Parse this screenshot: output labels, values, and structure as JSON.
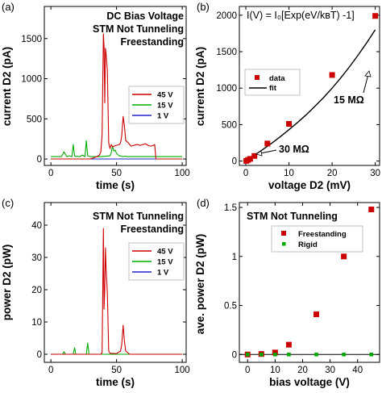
{
  "chart_data": [
    {
      "panel": "(a)",
      "type": "line",
      "xlabel": "time (s)",
      "ylabel": "current D2 (pA)",
      "xlim": [
        -5,
        103
      ],
      "ylim": [
        -80,
        1900
      ],
      "xticks": [
        0,
        50,
        100
      ],
      "yticks": [
        0,
        500,
        1000,
        1500
      ],
      "annotations": [
        "DC Bias Voltage",
        "STM Not Tunneling",
        "Freestanding"
      ],
      "legend_position": "center-right",
      "series": [
        {
          "name": "45 V",
          "color": "#cc0000",
          "x": [
            0,
            20,
            30,
            35,
            37,
            38,
            39,
            40,
            40.5,
            41,
            41.5,
            42,
            43,
            44,
            45,
            46,
            47,
            48,
            50,
            52,
            53,
            54,
            55,
            56,
            57,
            59,
            61,
            63,
            66,
            68,
            70,
            72,
            74,
            76,
            78,
            79,
            80,
            90,
            100
          ],
          "y": [
            0,
            0,
            0,
            30,
            50,
            90,
            300,
            1560,
            1400,
            700,
            1380,
            1320,
            1100,
            200,
            130,
            180,
            150,
            160,
            170,
            180,
            200,
            290,
            530,
            410,
            230,
            200,
            160,
            170,
            180,
            170,
            180,
            190,
            170,
            160,
            170,
            180,
            0,
            0,
            0
          ]
        },
        {
          "name": "15 V",
          "color": "#00aa00",
          "x": [
            0,
            8,
            9,
            10,
            11,
            12,
            14,
            16,
            17,
            18,
            19,
            20,
            22,
            24,
            26,
            27,
            28,
            30,
            33,
            38,
            45,
            46,
            47,
            48,
            49,
            50,
            52,
            54,
            55,
            56,
            58,
            60,
            100
          ],
          "y": [
            30,
            30,
            60,
            90,
            60,
            30,
            40,
            30,
            180,
            40,
            30,
            35,
            30,
            50,
            30,
            230,
            40,
            30,
            30,
            30,
            40,
            80,
            160,
            100,
            110,
            70,
            40,
            35,
            30,
            35,
            30,
            30,
            30
          ]
        },
        {
          "name": "1 V",
          "color": "#2222cc",
          "x": [
            0,
            100
          ],
          "y": [
            0,
            0
          ]
        }
      ]
    },
    {
      "panel": "(b)",
      "type": "scatter",
      "xlabel": "voltage D2 (mV)",
      "ylabel": "current D2 (pA)",
      "xlim": [
        -1.5,
        31
      ],
      "ylim": [
        -60,
        2120
      ],
      "xticks": [
        0,
        10,
        20,
        30
      ],
      "yticks": [
        0,
        500,
        1000,
        1500,
        2000
      ],
      "equation": "I(V) = I₀[Exp(eV/k_BT) -1]",
      "annotations": [
        "15 MΩ",
        "30 MΩ"
      ],
      "legend_position": "upper-left",
      "series": [
        {
          "name": "data",
          "color": "#cc0000",
          "x": [
            0.1,
            0.5,
            1,
            2,
            5,
            10,
            20,
            30
          ],
          "y": [
            2,
            15,
            30,
            70,
            240,
            510,
            1180,
            1990
          ]
        },
        {
          "name": "fit",
          "color": "#000000",
          "x": [
            0,
            2,
            4,
            6,
            8,
            10,
            12,
            14,
            16,
            18,
            20,
            22,
            24,
            26,
            28,
            30
          ],
          "y": [
            0,
            80,
            160,
            245,
            335,
            430,
            530,
            635,
            750,
            870,
            1000,
            1140,
            1290,
            1450,
            1620,
            1800
          ]
        }
      ]
    },
    {
      "panel": "(c)",
      "type": "line",
      "xlabel": "time (s)",
      "ylabel": "power D2 (pW)",
      "xlim": [
        -5,
        103
      ],
      "ylim": [
        -2.5,
        47
      ],
      "xticks": [
        0,
        50,
        100
      ],
      "yticks": [
        0,
        10,
        20,
        30,
        40
      ],
      "annotations": [
        "STM Not Tunneling",
        "Freestanding"
      ],
      "legend_position": "center-right",
      "series": [
        {
          "name": "45 V",
          "color": "#cc0000",
          "x": [
            0,
            35,
            38,
            39,
            40,
            40.5,
            41,
            41.5,
            42,
            43,
            44,
            45,
            50,
            53,
            54,
            55,
            56,
            57,
            60,
            100
          ],
          "y": [
            0,
            0,
            0,
            0.5,
            39,
            14,
            20,
            33,
            27,
            19,
            1,
            0.3,
            0.2,
            1,
            3,
            9,
            4,
            1,
            0,
            0
          ]
        },
        {
          "name": "15 V",
          "color": "#00aa00",
          "x": [
            0,
            9,
            10,
            11,
            17,
            18,
            19,
            27,
            28,
            29,
            100
          ],
          "y": [
            0,
            0,
            0.8,
            0,
            0,
            2,
            0,
            0,
            3.5,
            0,
            0
          ]
        },
        {
          "name": "1 V",
          "color": "#2222cc",
          "x": [
            0,
            100
          ],
          "y": [
            0,
            0
          ]
        }
      ]
    },
    {
      "panel": "(d)",
      "type": "scatter",
      "xlabel": "bias voltage (V)",
      "ylabel": "ave. power D2 (pW)",
      "xlim": [
        -3,
        48
      ],
      "ylim": [
        -0.08,
        1.55
      ],
      "xticks": [
        0,
        10,
        20,
        30,
        40
      ],
      "yticks": [
        0,
        0.5,
        1,
        1.5
      ],
      "annotations": [
        "STM Not Tunneling"
      ],
      "legend_position": "upper-right",
      "series": [
        {
          "name": "Freestanding",
          "color": "#cc0000",
          "x": [
            0,
            5,
            10,
            15,
            25,
            35,
            45
          ],
          "y": [
            0,
            0.005,
            0.02,
            0.1,
            0.41,
            1.0,
            1.48
          ]
        },
        {
          "name": "Rigid",
          "color": "#00aa00",
          "x": [
            0,
            5,
            10,
            15,
            25,
            35,
            45
          ],
          "y": [
            0,
            0,
            0,
            0,
            0,
            0,
            0
          ]
        }
      ]
    }
  ],
  "text": {
    "a": {
      "label": "(a)",
      "ann": [
        "DC Bias Voltage",
        "STM Not Tunneling",
        "Freestanding"
      ],
      "xt": [
        "0",
        "50",
        "100"
      ],
      "yt": [
        "0",
        "500",
        "1000",
        "1500"
      ],
      "xl": "time (s)",
      "yl": "current D2 (pA)",
      "leg": [
        "45 V",
        "15 V",
        "1 V"
      ]
    },
    "b": {
      "label": "(b)",
      "eq": "I(V) = I₀[Exp(eV/kʙT) -1]",
      "ann15": "15 MΩ",
      "ann30": "30 MΩ",
      "xt": [
        "0",
        "10",
        "20",
        "30"
      ],
      "yt": [
        "0",
        "500",
        "1000",
        "1500",
        "2000"
      ],
      "xl": "voltage D2 (mV)",
      "yl": "current D2 (pA)",
      "leg": [
        "data",
        "fit"
      ]
    },
    "c": {
      "label": "(c)",
      "ann": [
        "STM Not Tunneling",
        "Freestanding"
      ],
      "xt": [
        "0",
        "50",
        "100"
      ],
      "yt": [
        "0",
        "10",
        "20",
        "30",
        "40"
      ],
      "xl": "time (s)",
      "yl": "power D2 (pW)",
      "leg": [
        "45 V",
        "15 V",
        "1 V"
      ]
    },
    "d": {
      "label": "(d)",
      "ann": "STM Not Tunneling",
      "xt": [
        "0",
        "10",
        "20",
        "30",
        "40"
      ],
      "yt": [
        "0",
        "0.5",
        "1",
        "1.5"
      ],
      "xl": "bias voltage (V)",
      "yl": "ave. power D2 (pW)",
      "leg": [
        "Freestanding",
        "Rigid"
      ]
    }
  }
}
